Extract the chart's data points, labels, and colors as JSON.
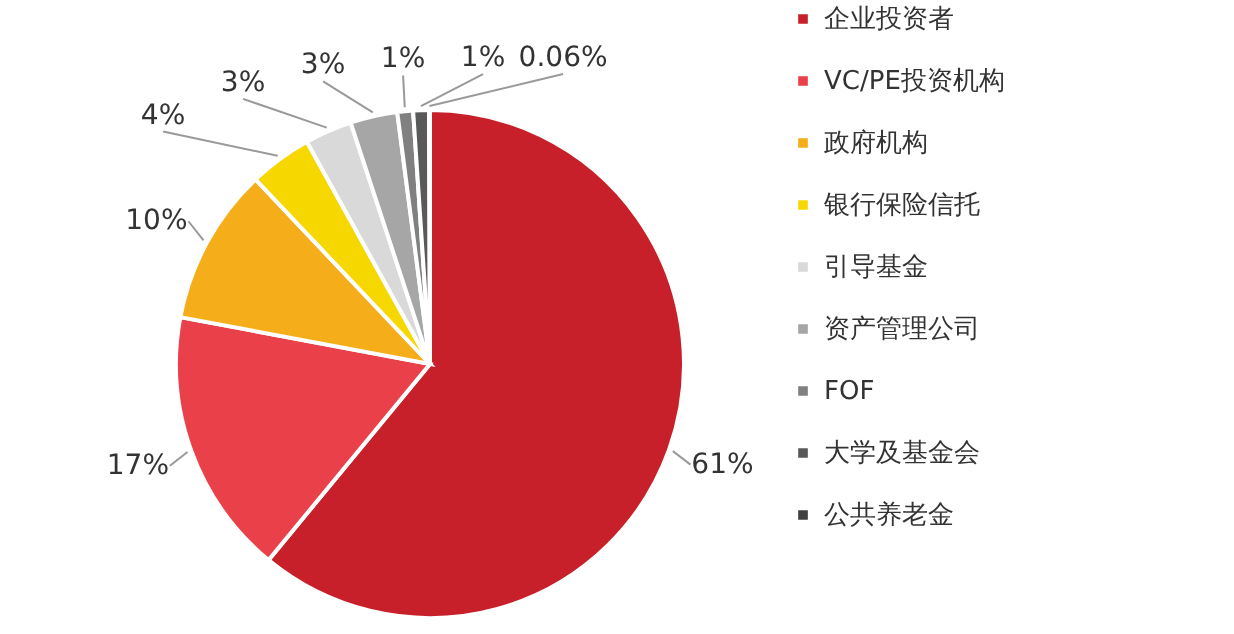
{
  "chart_data": {
    "type": "pie",
    "categories": [
      "企业投资者",
      "VC/PE投资机构",
      "政府机构",
      "银行保险信托",
      "引导基金",
      "资产管理公司",
      "FOF",
      "大学及基金会",
      "公共养老金"
    ],
    "values": [
      61,
      17,
      10,
      4,
      3,
      3,
      1,
      1,
      0.06
    ],
    "value_labels": [
      "61%",
      "17%",
      "10%",
      "4%",
      "3%",
      "3%",
      "1%",
      "1%",
      "0.06%"
    ],
    "colors": [
      "#c8202a",
      "#e9404a",
      "#f5ae1a",
      "#f7d700",
      "#d9d9d9",
      "#a6a6a6",
      "#808080",
      "#595959",
      "#404040"
    ],
    "legend": "right"
  }
}
